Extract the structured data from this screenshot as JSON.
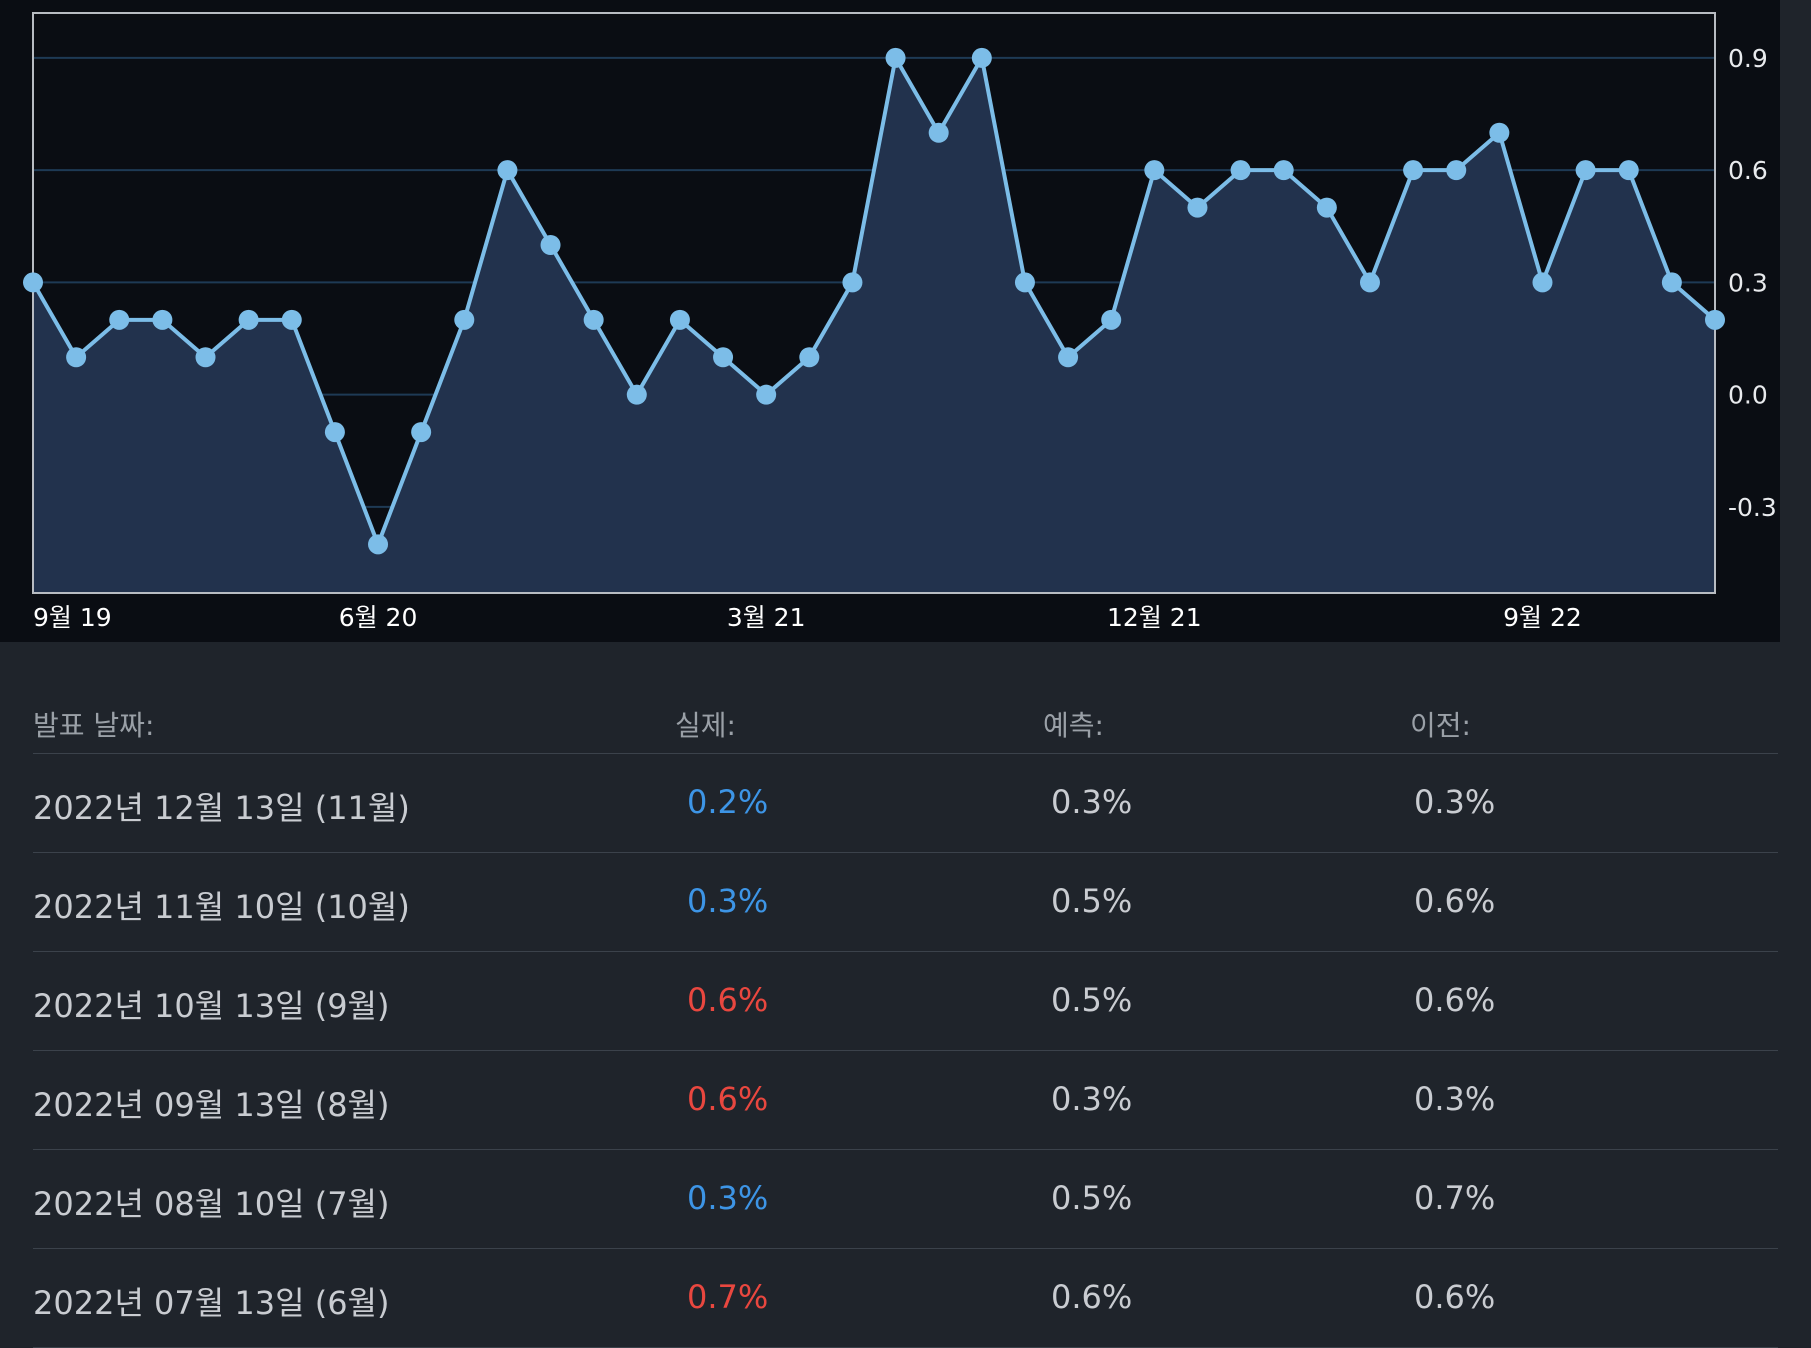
{
  "colors": {
    "line": "#7cbde8",
    "area": "#22324d",
    "grid": "#1e3a55",
    "actual_lower": "#3d95e6",
    "actual_higher": "#e9473f"
  },
  "chart_data": {
    "type": "area",
    "title": "",
    "xlabel": "",
    "ylabel": "",
    "x_ticks": [
      "9월 19",
      "6월 20",
      "3월 21",
      "12월 21",
      "9월 22"
    ],
    "y_ticks": [
      "0.9",
      "0.6",
      "0.3",
      "0.0",
      "-0.3"
    ],
    "ylim": [
      -0.53,
      1.02
    ],
    "grid": true,
    "values": [
      0.3,
      0.1,
      0.2,
      0.2,
      0.1,
      0.2,
      0.2,
      -0.1,
      -0.4,
      -0.1,
      0.2,
      0.6,
      0.4,
      0.2,
      0.0,
      0.2,
      0.1,
      0.0,
      0.1,
      0.3,
      0.9,
      0.7,
      0.9,
      0.3,
      0.1,
      0.2,
      0.6,
      0.5,
      0.6,
      0.6,
      0.5,
      0.3,
      0.6,
      0.6,
      0.7,
      0.3,
      0.6,
      0.6,
      0.3,
      0.2
    ]
  },
  "table": {
    "headers": {
      "date": "발표 날짜:",
      "actual": "실제:",
      "forecast": "예측:",
      "previous": "이전:"
    },
    "rows": [
      {
        "date": "2022년 12월 13일 (11월)",
        "actual": "0.2%",
        "forecast": "0.3%",
        "previous": "0.3%",
        "actual_color": "#3d95e6"
      },
      {
        "date": "2022년 11월 10일 (10월)",
        "actual": "0.3%",
        "forecast": "0.5%",
        "previous": "0.6%",
        "actual_color": "#3d95e6"
      },
      {
        "date": "2022년 10월 13일 (9월)",
        "actual": "0.6%",
        "forecast": "0.5%",
        "previous": "0.6%",
        "actual_color": "#e9473f"
      },
      {
        "date": "2022년 09월 13일 (8월)",
        "actual": "0.6%",
        "forecast": "0.3%",
        "previous": "0.3%",
        "actual_color": "#e9473f"
      },
      {
        "date": "2022년 08월 10일 (7월)",
        "actual": "0.3%",
        "forecast": "0.5%",
        "previous": "0.7%",
        "actual_color": "#3d95e6"
      },
      {
        "date": "2022년 07월 13일 (6월)",
        "actual": "0.7%",
        "forecast": "0.6%",
        "previous": "0.6%",
        "actual_color": "#e9473f"
      }
    ]
  }
}
